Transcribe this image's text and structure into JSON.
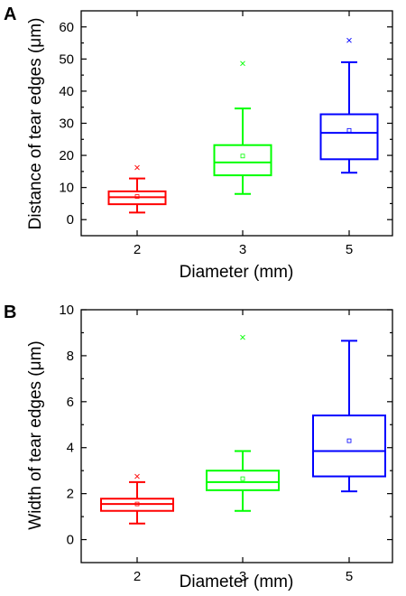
{
  "chart_data": [
    {
      "panel": "A",
      "type": "box",
      "xlabel": "Diameter (mm)",
      "ylabel": "Distance of tear edges (μm)",
      "ylim": [
        -5,
        65
      ],
      "yticks": [
        0,
        10,
        20,
        30,
        40,
        50,
        60
      ],
      "grid": false,
      "categories": [
        "2",
        "3",
        "5"
      ],
      "boxes": [
        {
          "category": "2",
          "color": "#ff0000",
          "whisker_low": 2.2,
          "q1": 4.8,
          "median": 7.0,
          "mean": 7.2,
          "q3": 8.8,
          "whisker_high": 12.8,
          "outliers": [
            16.2
          ]
        },
        {
          "category": "3",
          "color": "#00ff00",
          "whisker_low": 8.0,
          "q1": 13.8,
          "median": 17.8,
          "mean": 19.8,
          "q3": 23.2,
          "whisker_high": 34.6,
          "outliers": [
            48.6
          ]
        },
        {
          "category": "5",
          "color": "#0000ff",
          "whisker_low": 14.6,
          "q1": 18.8,
          "median": 27.0,
          "mean": 27.8,
          "q3": 32.8,
          "whisker_high": 49.0,
          "outliers": [
            55.8
          ]
        }
      ]
    },
    {
      "panel": "B",
      "type": "box",
      "xlabel": "Diameter (mm)",
      "ylabel": "Width of tear edges (μm)",
      "ylim": [
        -1,
        10
      ],
      "yticks": [
        0,
        2,
        4,
        6,
        8,
        10
      ],
      "grid": false,
      "categories": [
        "2",
        "3",
        "5"
      ],
      "boxes": [
        {
          "category": "2",
          "color": "#ff0000",
          "whisker_low": 0.7,
          "q1": 1.25,
          "median": 1.55,
          "mean": 1.55,
          "q3": 1.78,
          "whisker_high": 2.5,
          "outliers": [
            2.75
          ]
        },
        {
          "category": "3",
          "color": "#00ff00",
          "whisker_low": 1.25,
          "q1": 2.15,
          "median": 2.5,
          "mean": 2.65,
          "q3": 3.0,
          "whisker_high": 3.85,
          "outliers": [
            8.8
          ]
        },
        {
          "category": "5",
          "color": "#0000ff",
          "whisker_low": 2.1,
          "q1": 2.75,
          "median": 3.85,
          "mean": 4.3,
          "q3": 5.4,
          "whisker_high": 8.65,
          "outliers": []
        }
      ]
    }
  ]
}
